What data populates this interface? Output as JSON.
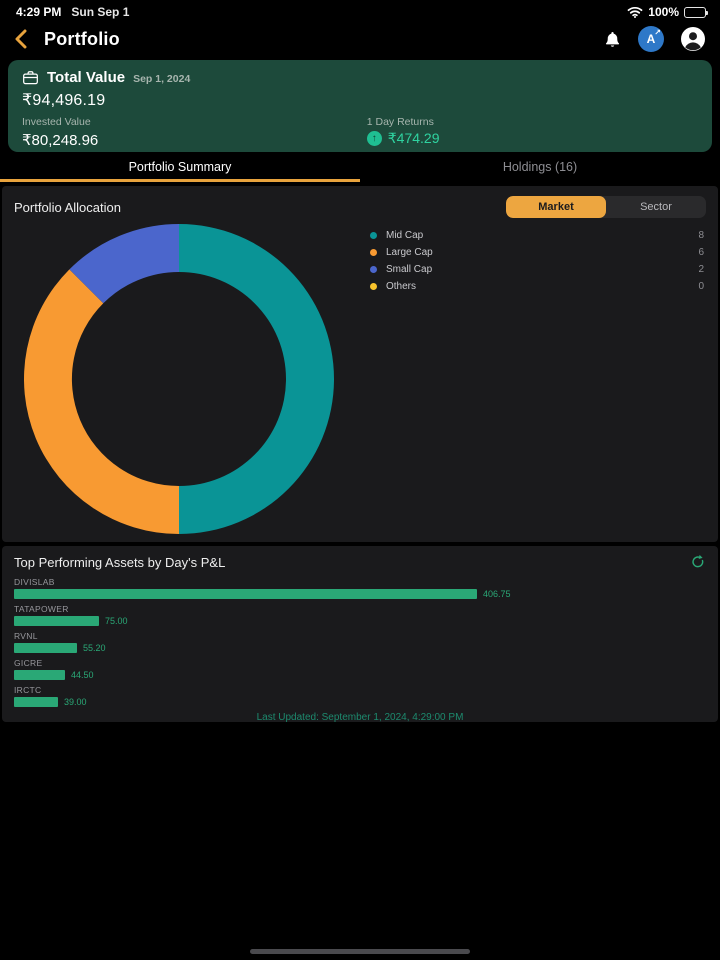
{
  "status_bar": {
    "time": "4:29 PM",
    "date": "Sun Sep 1",
    "battery": "100%"
  },
  "nav": {
    "title": "Portfolio",
    "app_logo_letter": "A",
    "icons": [
      "back-chevron-icon",
      "bell-icon",
      "app-logo-icon",
      "profile-icon"
    ]
  },
  "summary_card": {
    "title": "Total Value",
    "date": "Sep 1, 2024",
    "total_value": "₹94,496.19",
    "invested_label": "Invested Value",
    "invested_value": "₹80,248.96",
    "returns_label": "1 Day Returns",
    "returns_value": "₹474.29",
    "returns_direction": "up"
  },
  "tabs": [
    {
      "label": "Portfolio Summary",
      "active": true
    },
    {
      "label": "Holdings (16)",
      "active": false
    }
  ],
  "allocation": {
    "title": "Portfolio Allocation",
    "toggle": [
      "Market",
      "Sector"
    ],
    "selected": "Market"
  },
  "performance": {
    "title": "Top Performing Assets by Day's P&L",
    "last_updated": "Last Updated: September 1, 2024, 4:29:00 PM"
  },
  "chart_data": [
    {
      "type": "pie",
      "donut": true,
      "title": "Portfolio Allocation (Market)",
      "labels": [
        "Mid Cap",
        "Large Cap",
        "Small Cap",
        "Others"
      ],
      "values": [
        8,
        6,
        2,
        0
      ],
      "colors": [
        "#0a9496",
        "#f89a32",
        "#4b66cc",
        "#f8c32c"
      ],
      "legend_position": "right",
      "start_angle_deg": -90,
      "direction": "clockwise"
    },
    {
      "type": "bar",
      "orientation": "horizontal",
      "title": "Top Performing Assets by Day's P&L",
      "categories": [
        "DIVISLAB",
        "TATAPOWER",
        "RVNL",
        "GICRE",
        "IRCTC"
      ],
      "values": [
        406.75,
        75.0,
        55.2,
        44.5,
        39.0
      ],
      "value_labels": [
        "406.75",
        "75.00",
        "55.20",
        "44.50",
        "39.00"
      ],
      "bar_color": "#2aa876",
      "grid": false
    }
  ],
  "colors": {
    "accent_amber": "#e8a33d",
    "card_green": "#1d4a3b",
    "positive_green": "#2fd3a0",
    "bar_green": "#2aa876",
    "card_bg": "#1a1a1c",
    "app_logo_blue": "#2e78c8"
  }
}
